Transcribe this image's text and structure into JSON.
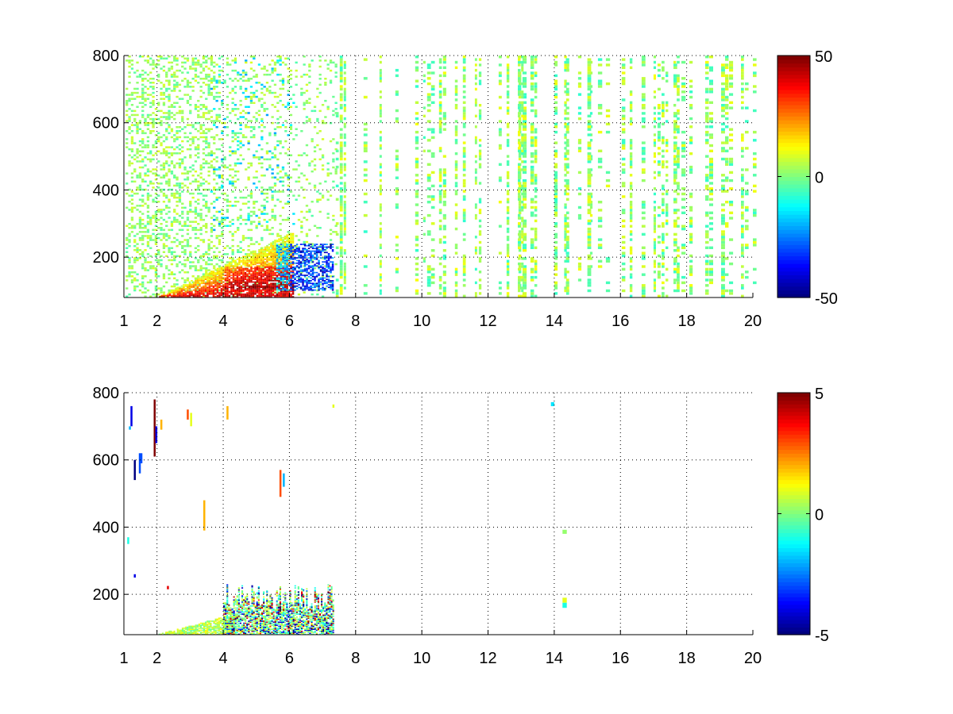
{
  "chart_data": [
    {
      "type": "heatmap",
      "title": "",
      "xlabel": "",
      "ylabel": "",
      "xlim": [
        1,
        20
      ],
      "ylim": [
        80,
        800
      ],
      "grid": true,
      "grid_style": "dotted",
      "x_ticks": [
        1,
        2,
        4,
        6,
        8,
        10,
        12,
        14,
        16,
        18,
        20
      ],
      "y_ticks": [
        200,
        400,
        600,
        800
      ],
      "x_tick_labels": [
        "1",
        "2",
        "4",
        "6",
        "8",
        "10",
        "12",
        "14",
        "16",
        "18",
        "20"
      ],
      "y_tick_labels": [
        "200",
        "400",
        "600",
        "800"
      ],
      "colormap": "jet",
      "colorbar": {
        "range": [
          -50,
          50
        ],
        "ticks": [
          -50,
          0,
          50
        ],
        "tick_labels": [
          "-50",
          "0",
          "50"
        ]
      },
      "features": [
        {
          "x_range": [
            3.0,
            6.0
          ],
          "y_range": [
            80,
            180
          ],
          "approx_value": 40
        },
        {
          "x_range": [
            6.0,
            7.2
          ],
          "y_range": [
            120,
            200
          ],
          "approx_value": -35
        },
        {
          "x_range": [
            8.0,
            20.0
          ],
          "y_range": [
            80,
            800
          ],
          "approx_value": 5
        }
      ]
    },
    {
      "type": "heatmap",
      "title": "",
      "xlabel": "",
      "ylabel": "",
      "xlim": [
        1,
        20
      ],
      "ylim": [
        80,
        800
      ],
      "grid": true,
      "grid_style": "dotted",
      "x_ticks": [
        1,
        2,
        4,
        6,
        8,
        10,
        12,
        14,
        16,
        18,
        20
      ],
      "y_ticks": [
        200,
        400,
        600,
        800
      ],
      "x_tick_labels": [
        "1",
        "2",
        "4",
        "6",
        "8",
        "10",
        "12",
        "14",
        "16",
        "18",
        "20"
      ],
      "y_tick_labels": [
        "200",
        "400",
        "600",
        "800"
      ],
      "colormap": "jet",
      "colorbar": {
        "range": [
          -5,
          5
        ],
        "ticks": [
          -5,
          0,
          5
        ],
        "tick_labels": [
          "-5",
          "0",
          "5"
        ]
      },
      "features": [
        {
          "x_range": [
            2.0,
            4.0
          ],
          "y_range": [
            80,
            130
          ],
          "approx_value": 0.5
        },
        {
          "x_range": [
            4.0,
            7.2
          ],
          "y_range": [
            80,
            250
          ],
          "approx_value": 0
        },
        {
          "x_range": [
            14.2,
            14.4
          ],
          "y_range": [
            150,
            190
          ],
          "approx_value": 0
        }
      ]
    }
  ]
}
